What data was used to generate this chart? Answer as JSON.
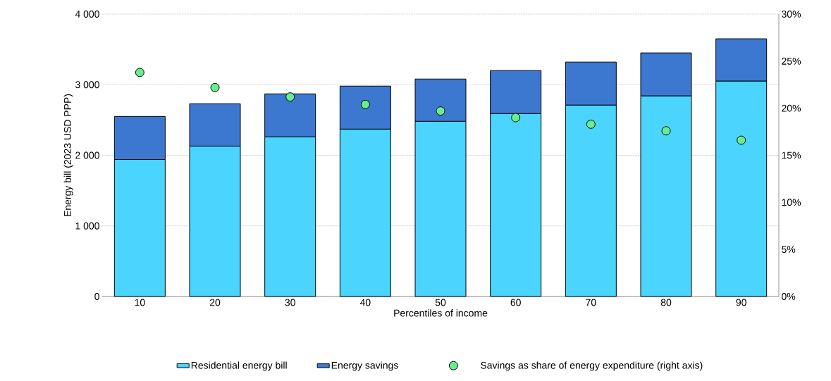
{
  "chart_data": {
    "type": "bar",
    "stacked": true,
    "xlabel": "Percentiles of income",
    "ylabel": "Energy bill (2023 USD PPP)",
    "categories": [
      "10",
      "20",
      "30",
      "40",
      "50",
      "60",
      "70",
      "80",
      "90"
    ],
    "series": [
      {
        "name": "Residential energy bill",
        "type": "bar",
        "color": "#4ad4fe",
        "values": [
          1940,
          2130,
          2260,
          2370,
          2480,
          2590,
          2710,
          2840,
          3050
        ]
      },
      {
        "name": "Energy savings",
        "type": "bar",
        "color": "#3c78d0",
        "values": [
          610,
          600,
          610,
          610,
          600,
          610,
          610,
          610,
          600
        ]
      },
      {
        "name": "Savings as share of energy expenditure (right axis)",
        "type": "scatter",
        "axis": "y2",
        "color": "#66ef8e",
        "values": [
          23.8,
          22.2,
          21.2,
          20.4,
          19.7,
          19.0,
          18.3,
          17.6,
          16.6
        ]
      }
    ],
    "ylim": [
      0,
      4000
    ],
    "yticks": [
      0,
      {
        "value": 1000,
        "label": "1 000"
      },
      {
        "value": 2000,
        "label": "2 000"
      },
      {
        "value": 3000,
        "label": "3 000"
      },
      {
        "value": 4000,
        "label": "4 000"
      }
    ],
    "y2lim": [
      0,
      30
    ],
    "y2ticks": [
      {
        "value": 0,
        "label": "0%"
      },
      {
        "value": 5,
        "label": "5%"
      },
      {
        "value": 10,
        "label": "10%"
      },
      {
        "value": 15,
        "label": "15%"
      },
      {
        "value": 20,
        "label": "20%"
      },
      {
        "value": 25,
        "label": "25%"
      },
      {
        "value": 30,
        "label": "30%"
      }
    ],
    "grid": "y",
    "legend": "bottom",
    "marker": "circle"
  }
}
